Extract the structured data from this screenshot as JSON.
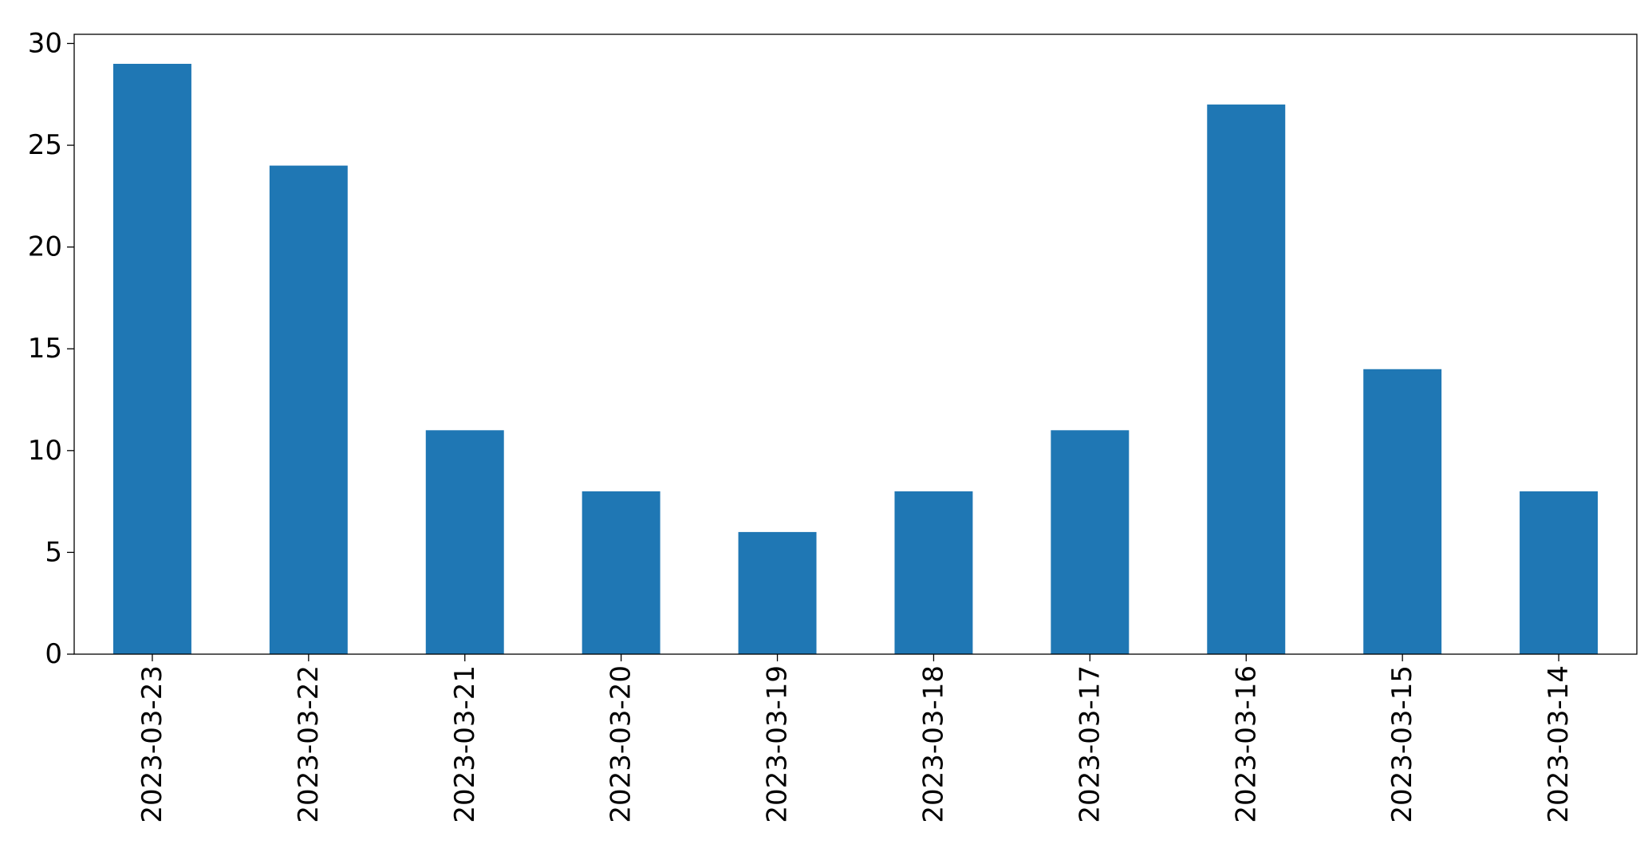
{
  "chart_data": {
    "type": "bar",
    "categories": [
      "2023-03-23",
      "2023-03-22",
      "2023-03-21",
      "2023-03-20",
      "2023-03-19",
      "2023-03-18",
      "2023-03-17",
      "2023-03-16",
      "2023-03-15",
      "2023-03-14"
    ],
    "values": [
      29,
      24,
      11,
      8,
      6,
      8,
      11,
      27,
      14,
      8
    ],
    "color": "#1f77b4",
    "ylim": [
      0,
      30.45
    ],
    "yticks": [
      0,
      5,
      10,
      15,
      20,
      25,
      30
    ],
    "grid": false
  }
}
